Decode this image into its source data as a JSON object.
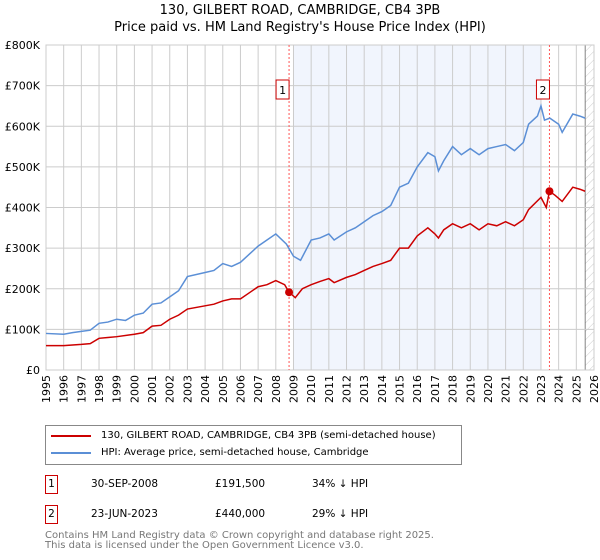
{
  "chart_data": {
    "type": "line",
    "title": "130, GILBERT ROAD, CAMBRIDGE, CB4 3PB",
    "subtitle": "Price paid vs. HM Land Registry's House Price Index (HPI)",
    "xlim": [
      1995,
      2026
    ],
    "ylim": [
      0,
      800000
    ],
    "yticks": [
      {
        "v": 0,
        "label": "£0"
      },
      {
        "v": 100000,
        "label": "£100K"
      },
      {
        "v": 200000,
        "label": "£200K"
      },
      {
        "v": 300000,
        "label": "£300K"
      },
      {
        "v": 400000,
        "label": "£400K"
      },
      {
        "v": 500000,
        "label": "£500K"
      },
      {
        "v": 600000,
        "label": "£600K"
      },
      {
        "v": 700000,
        "label": "£700K"
      },
      {
        "v": 800000,
        "label": "£800K"
      }
    ],
    "xticks": [
      "1995",
      "1996",
      "1997",
      "1998",
      "1999",
      "2000",
      "2001",
      "2002",
      "2003",
      "2004",
      "2005",
      "2006",
      "2007",
      "2008",
      "2009",
      "2010",
      "2011",
      "2012",
      "2013",
      "2014",
      "2015",
      "2016",
      "2017",
      "2018",
      "2019",
      "2020",
      "2021",
      "2022",
      "2023",
      "2024",
      "2025",
      "2026"
    ],
    "grid": true,
    "shaded_range": [
      2009,
      2023
    ],
    "forecast_from": 2025.5,
    "series": [
      {
        "name": "130, GILBERT ROAD, CAMBRIDGE, CB4 3PB (semi-detached house)",
        "color": "#cc0000",
        "x": [
          1995,
          1996,
          1997,
          1997.5,
          1998,
          1998.5,
          1999,
          2000,
          2000.5,
          2001,
          2001.5,
          2002,
          2002.5,
          2003,
          2004,
          2004.5,
          2005,
          2005.5,
          2006,
          2006.5,
          2007,
          2007.5,
          2008,
          2008.5,
          2008.75,
          2009.1,
          2009.5,
          2010,
          2010.5,
          2011,
          2011.3,
          2012,
          2012.5,
          2013,
          2013.5,
          2014,
          2014.5,
          2015,
          2015.5,
          2016,
          2016.6,
          2017,
          2017.2,
          2017.5,
          2018,
          2018.5,
          2019,
          2019.5,
          2020,
          2020.5,
          2021,
          2021.5,
          2022,
          2022.3,
          2023,
          2023.3,
          2023.48,
          2023.8,
          2024.2,
          2024.8,
          2025.2,
          2025.5
        ],
        "y": [
          60000,
          60000,
          63000,
          65000,
          78000,
          80000,
          82000,
          88000,
          92000,
          108000,
          110000,
          125000,
          135000,
          150000,
          158000,
          162000,
          170000,
          175000,
          175000,
          190000,
          205000,
          210000,
          220000,
          210000,
          191500,
          178000,
          200000,
          210000,
          218000,
          225000,
          215000,
          228000,
          235000,
          245000,
          255000,
          262000,
          270000,
          300000,
          300000,
          330000,
          350000,
          335000,
          325000,
          345000,
          360000,
          350000,
          360000,
          345000,
          360000,
          355000,
          365000,
          355000,
          370000,
          395000,
          425000,
          400000,
          440000,
          430000,
          415000,
          450000,
          445000,
          440000
        ]
      },
      {
        "name": "HPI: Average price, semi-detached house, Cambridge",
        "color": "#5b8fd6",
        "x": [
          1995,
          1996,
          1996.5,
          1997,
          1997.5,
          1998,
          1998.5,
          1999,
          1999.5,
          2000,
          2000.5,
          2001,
          2001.5,
          2002,
          2002.5,
          2003,
          2004,
          2004.5,
          2005,
          2005.5,
          2006,
          2006.5,
          2007,
          2007.5,
          2008,
          2008.6,
          2009,
          2009.4,
          2010,
          2010.5,
          2011,
          2011.3,
          2012,
          2012.5,
          2013,
          2013.5,
          2014,
          2014.5,
          2015,
          2015.5,
          2016,
          2016.6,
          2017,
          2017.2,
          2017.5,
          2018,
          2018.5,
          2019,
          2019.5,
          2020,
          2020.5,
          2021,
          2021.5,
          2022,
          2022.3,
          2022.8,
          2023,
          2023.2,
          2023.5,
          2024,
          2024.2,
          2024.8,
          2025.2,
          2025.5
        ],
        "y": [
          90000,
          88000,
          92000,
          95000,
          98000,
          115000,
          118000,
          125000,
          122000,
          135000,
          140000,
          162000,
          165000,
          180000,
          195000,
          230000,
          240000,
          245000,
          262000,
          255000,
          265000,
          285000,
          305000,
          320000,
          335000,
          310000,
          280000,
          270000,
          320000,
          325000,
          335000,
          320000,
          340000,
          350000,
          365000,
          380000,
          390000,
          405000,
          450000,
          460000,
          500000,
          535000,
          525000,
          490000,
          515000,
          550000,
          530000,
          545000,
          530000,
          545000,
          550000,
          555000,
          540000,
          560000,
          605000,
          625000,
          650000,
          615000,
          620000,
          605000,
          585000,
          630000,
          625000,
          620000
        ]
      }
    ],
    "annotations": [
      {
        "label": "1",
        "x": 2008.75,
        "y": 191500
      },
      {
        "label": "2",
        "x": 2023.48,
        "y": 440000
      }
    ]
  },
  "legend": {
    "items": [
      "130, GILBERT ROAD, CAMBRIDGE, CB4 3PB (semi-detached house)",
      "HPI: Average price, semi-detached house, Cambridge"
    ]
  },
  "sales": [
    {
      "num": "1",
      "date": "30-SEP-2008",
      "price": "£191,500",
      "hpi": "34% ↓ HPI"
    },
    {
      "num": "2",
      "date": "23-JUN-2023",
      "price": "£440,000",
      "hpi": "29% ↓ HPI"
    }
  ],
  "footer": {
    "line1": "Contains HM Land Registry data © Crown copyright and database right 2025.",
    "line2": "This data is licensed under the Open Government Licence v3.0."
  }
}
